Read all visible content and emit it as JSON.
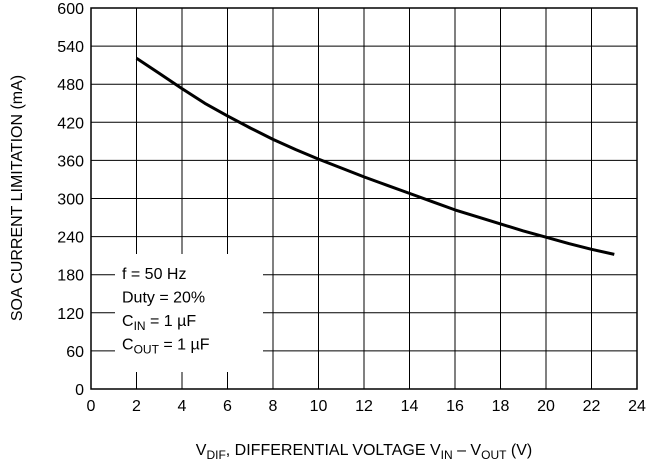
{
  "chart_data": {
    "type": "line",
    "xlabel": {
      "parts": [
        {
          "t": "V"
        },
        {
          "t": "DIF",
          "sub": true
        },
        {
          "t": ", DIFFERENTIAL VOLTAGE V"
        },
        {
          "t": "IN",
          "sub": true
        },
        {
          "t": " – V"
        },
        {
          "t": "OUT",
          "sub": true
        },
        {
          "t": " (V)"
        }
      ]
    },
    "ylabel": "SOA CURRENT LIMITATION (mA)",
    "xlim": [
      0,
      24
    ],
    "ylim": [
      0,
      600
    ],
    "x_ticks": [
      "0",
      "2",
      "4",
      "6",
      "8",
      "10",
      "12",
      "14",
      "16",
      "18",
      "20",
      "22",
      "24"
    ],
    "y_ticks": [
      "0",
      "60",
      "120",
      "180",
      "240",
      "300",
      "360",
      "420",
      "480",
      "540",
      "600"
    ],
    "grid": true,
    "series": [
      {
        "x": [
          2,
          3,
          4,
          5,
          6,
          7,
          8,
          9,
          10,
          11,
          12,
          13,
          14,
          15,
          16,
          17,
          18,
          19,
          20,
          21,
          22,
          23
        ],
        "y": [
          521,
          497,
          473,
          450,
          430,
          411,
          393,
          377,
          362,
          348,
          334,
          321,
          308,
          295,
          282,
          271,
          260,
          249,
          239,
          229,
          220,
          212
        ]
      }
    ],
    "legend_box": {
      "lines": [
        {
          "parts": [
            {
              "t": "f = 50 Hz"
            }
          ]
        },
        {
          "parts": [
            {
              "t": "Duty = 20%"
            }
          ]
        },
        {
          "parts": [
            {
              "t": "C"
            },
            {
              "t": "IN",
              "sub": true
            },
            {
              "t": " = 1 µF"
            }
          ]
        },
        {
          "parts": [
            {
              "t": "C"
            },
            {
              "t": "OUT",
              "sub": true
            },
            {
              "t": " = 1 µF"
            }
          ]
        }
      ]
    }
  }
}
